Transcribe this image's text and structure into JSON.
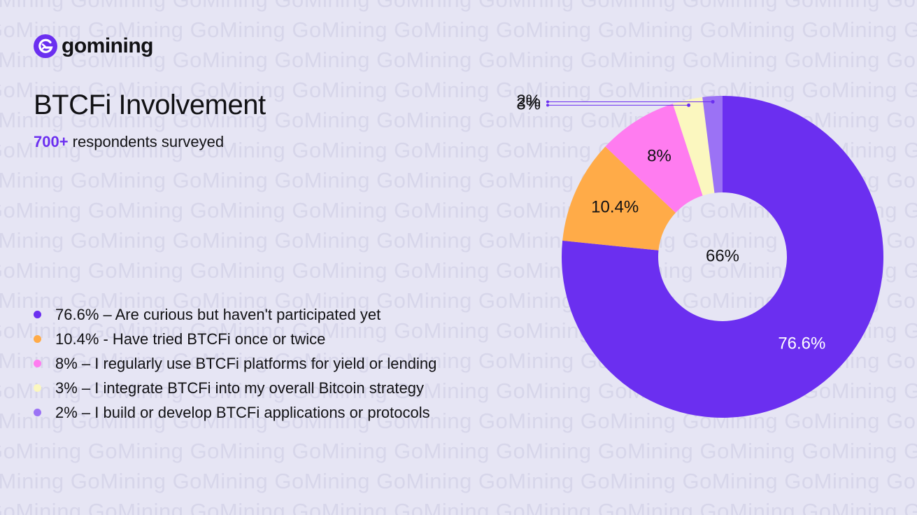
{
  "brand": {
    "name": "gomining",
    "watermark_text": "GoMining"
  },
  "header": {
    "title": "BTCFi Involvement",
    "subtitle_accent": "700+",
    "subtitle_rest": " respondents surveyed"
  },
  "legend": [
    {
      "text": "76.6% – Are curious but haven't participated yet",
      "color": "#6b2ff0"
    },
    {
      "text": "10.4% - Have tried BTCFi once or twice",
      "color": "#ffab48"
    },
    {
      "text": "8% – I regularly use BTCFi platforms for yield or lending",
      "color": "#ff7cf0"
    },
    {
      "text": "3% – I integrate BTCFi into my overall Bitcoin strategy",
      "color": "#fbf7bf"
    },
    {
      "text": "2% – I build or develop BTCFi applications or protocols",
      "color": "#9b72f5"
    }
  ],
  "chart_data": {
    "type": "pie",
    "donut": true,
    "center_label": "66%",
    "categories": [
      "Are curious but haven't participated yet",
      "Have tried BTCFi once or twice",
      "I regularly use BTCFi platforms for yield or lending",
      "I integrate BTCFi into my overall Bitcoin strategy",
      "I build or develop BTCFi applications or protocols"
    ],
    "values": [
      76.6,
      10.4,
      8,
      3,
      2
    ],
    "labels": [
      "76.6%",
      "10.4%",
      "8%",
      "3%",
      "2%"
    ],
    "colors": [
      "#6b2ff0",
      "#ffab48",
      "#ff7cf0",
      "#fbf7bf",
      "#9b72f5"
    ],
    "label_colors": [
      "#ffffff",
      "#111114",
      "#111114",
      "#111114",
      "#111114"
    ],
    "callouts": [
      3,
      4
    ],
    "legend_position": "left"
  }
}
